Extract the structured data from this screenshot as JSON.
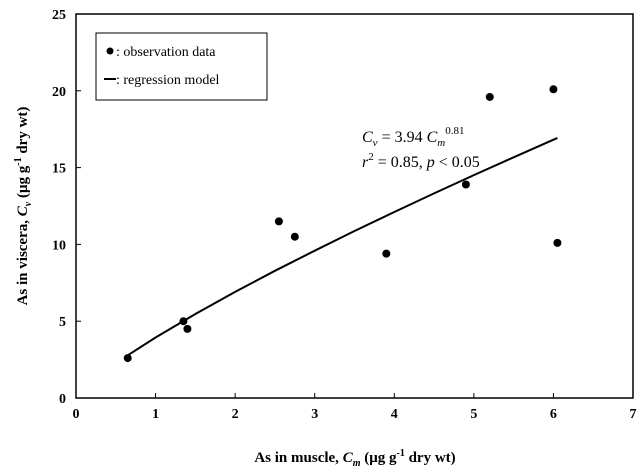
{
  "chart_data": {
    "type": "scatter",
    "xlabel": [
      "As in muscle, ",
      "C",
      "m",
      "  (μg g",
      "-1",
      " dry wt)"
    ],
    "ylabel": [
      "As in viscera, ",
      "C",
      "v",
      "  (μg g",
      "-1",
      " dry wt)"
    ],
    "annotation": {
      "line1": [
        "C",
        "v",
        " = 3.94 ",
        "C",
        "m",
        "0.81"
      ],
      "line2": [
        "r",
        "2",
        " = 0.85, ",
        "p",
        " < 0.05"
      ]
    },
    "xlim": [
      0,
      7
    ],
    "ylim": [
      0,
      25
    ],
    "xticks": [
      0,
      1,
      2,
      3,
      4,
      5,
      6,
      7
    ],
    "yticks": [
      0,
      5,
      10,
      15,
      20,
      25
    ],
    "legend": "upper left",
    "series": [
      {
        "name": ": observation data",
        "type": "scatter",
        "color": "#000000",
        "x": [
          0.65,
          1.35,
          1.4,
          2.55,
          2.75,
          3.9,
          4.9,
          5.2,
          6.0,
          6.05
        ],
        "values": [
          2.6,
          5.0,
          4.5,
          11.5,
          10.5,
          9.4,
          13.9,
          19.6,
          20.1,
          10.1
        ]
      },
      {
        "name": ": regression model",
        "type": "line",
        "color": "#000000",
        "x": [
          0.65,
          1,
          1.5,
          2,
          2.5,
          3,
          3.5,
          4,
          4.5,
          5,
          5.5,
          6.05
        ],
        "values": [
          2.78,
          3.94,
          5.47,
          6.91,
          8.28,
          9.59,
          10.87,
          12.11,
          13.32,
          14.51,
          15.67,
          16.93
        ]
      }
    ]
  }
}
